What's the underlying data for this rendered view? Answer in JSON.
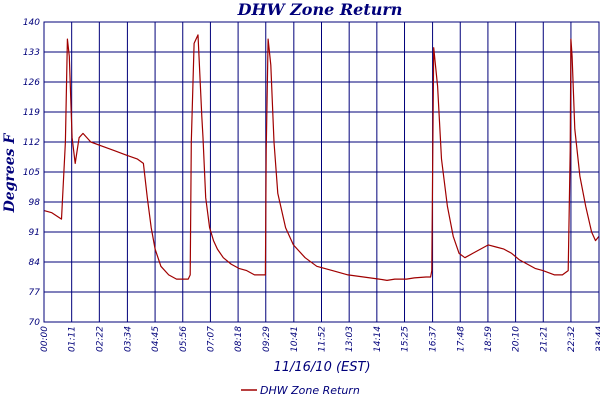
{
  "chart_data": {
    "type": "line",
    "title": "DHW Zone Return",
    "ylabel": "Degrees F",
    "xlabel": "11/16/10 (EST)",
    "ylim": [
      70,
      140
    ],
    "yticks": [
      "70",
      "77",
      "84",
      "91",
      "98",
      "105",
      "112",
      "119",
      "126",
      "133",
      "140"
    ],
    "xlim": [
      0,
      1424
    ],
    "xticks": [
      {
        "label": "00:00",
        "t": 0
      },
      {
        "label": "01:11",
        "t": 71
      },
      {
        "label": "02:22",
        "t": 142
      },
      {
        "label": "03:34",
        "t": 214
      },
      {
        "label": "04:45",
        "t": 285
      },
      {
        "label": "05:56",
        "t": 356
      },
      {
        "label": "07:07",
        "t": 427
      },
      {
        "label": "08:18",
        "t": 498
      },
      {
        "label": "09:29",
        "t": 569
      },
      {
        "label": "10:41",
        "t": 641
      },
      {
        "label": "11:52",
        "t": 712
      },
      {
        "label": "13:03",
        "t": 783
      },
      {
        "label": "14:14",
        "t": 854
      },
      {
        "label": "15:25",
        "t": 925
      },
      {
        "label": "16:37",
        "t": 997
      },
      {
        "label": "17:48",
        "t": 1068
      },
      {
        "label": "18:59",
        "t": 1139
      },
      {
        "label": "20:10",
        "t": 1210
      },
      {
        "label": "21:21",
        "t": 1281
      },
      {
        "label": "22:32",
        "t": 1352
      },
      {
        "label": "23:44",
        "t": 1424
      },
      {
        "label": "23:44",
        "t": 1424
      }
    ],
    "grid": true,
    "legend_position": "bottom-center",
    "series": [
      {
        "name": "DHW Zone Return",
        "color": "#a00000",
        "x": [
          0,
          20,
          45,
          55,
          60,
          65,
          72,
          80,
          90,
          100,
          120,
          150,
          180,
          210,
          240,
          255,
          265,
          275,
          285,
          300,
          320,
          340,
          355,
          370,
          375,
          378,
          385,
          395,
          405,
          408,
          415,
          425,
          435,
          445,
          460,
          480,
          500,
          520,
          540,
          560,
          568,
          570,
          575,
          582,
          590,
          600,
          620,
          640,
          670,
          700,
          740,
          780,
          820,
          860,
          880,
          900,
          930,
          950,
          980,
          992,
          995,
          997,
          1000,
          1010,
          1020,
          1035,
          1050,
          1065,
          1080,
          1100,
          1120,
          1140,
          1160,
          1180,
          1200,
          1220,
          1240,
          1260,
          1280,
          1310,
          1330,
          1345,
          1350,
          1352,
          1355,
          1362,
          1375,
          1390,
          1405,
          1415,
          1424
        ],
        "y": [
          96,
          95.5,
          94,
          112,
          136,
          132,
          113,
          107,
          113,
          114,
          112,
          111,
          110,
          109,
          108,
          107,
          99,
          92,
          87,
          83,
          81,
          80,
          80,
          80,
          81,
          112,
          135,
          137,
          118,
          113,
          99,
          92,
          89,
          87,
          85,
          83.5,
          82.5,
          82,
          81,
          81,
          81,
          110,
          136,
          130,
          112,
          100,
          92,
          88,
          85,
          83,
          82,
          81,
          80.5,
          80,
          79.7,
          80,
          80,
          80.3,
          80.5,
          80.5,
          82,
          105,
          134,
          125,
          108,
          97,
          90,
          86,
          85,
          86,
          87,
          88,
          87.5,
          87,
          86,
          84.5,
          83.5,
          82.5,
          82,
          81,
          81,
          82,
          110,
          136,
          132,
          115,
          104,
          97,
          91,
          89,
          90
        ]
      }
    ]
  }
}
